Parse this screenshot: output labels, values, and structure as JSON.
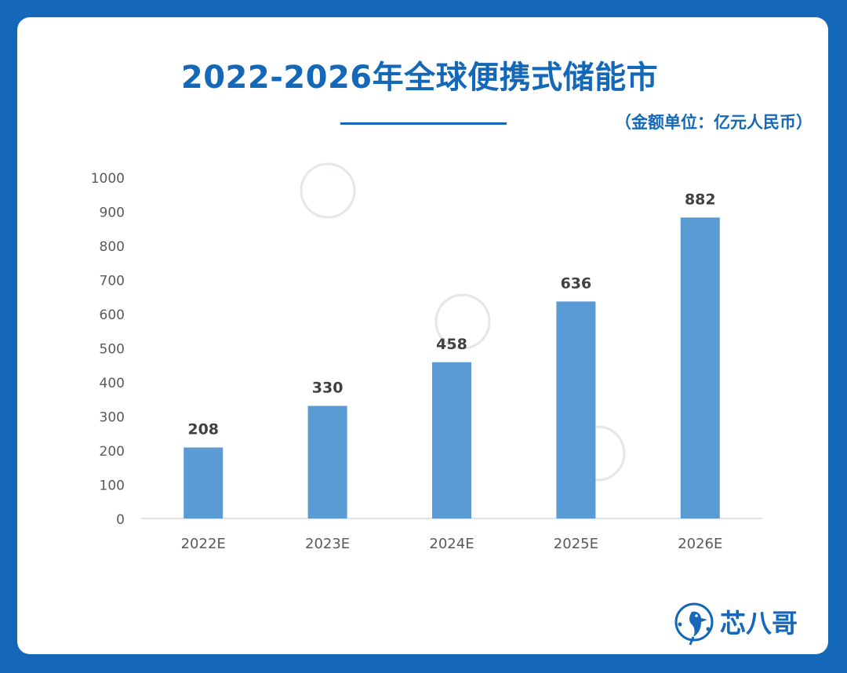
{
  "header": {
    "title": "2022-2026年全球便携式储能市",
    "unit_note": "（金额单位：亿元人民币）"
  },
  "brand": {
    "name": "芯八哥",
    "logo_icon": "kingfisher-logo-icon"
  },
  "colors": {
    "background": "#1567b9",
    "card": "#ffffff",
    "title": "#1368b8",
    "bar": "#5b9bd5"
  },
  "chart_data": {
    "type": "bar",
    "categories": [
      "2022E",
      "2023E",
      "2024E",
      "2025E",
      "2026E"
    ],
    "series": [
      {
        "values": [
          208,
          330,
          458,
          636,
          882
        ]
      }
    ],
    "title": "2022-2026年全球便携式储能市",
    "xlabel": "",
    "ylabel": "",
    "ylim": [
      0,
      1000
    ],
    "yticks": [
      0,
      100,
      200,
      300,
      400,
      500,
      600,
      700,
      800,
      900,
      1000
    ],
    "grid": false,
    "legend": "none",
    "data_labels": true
  }
}
